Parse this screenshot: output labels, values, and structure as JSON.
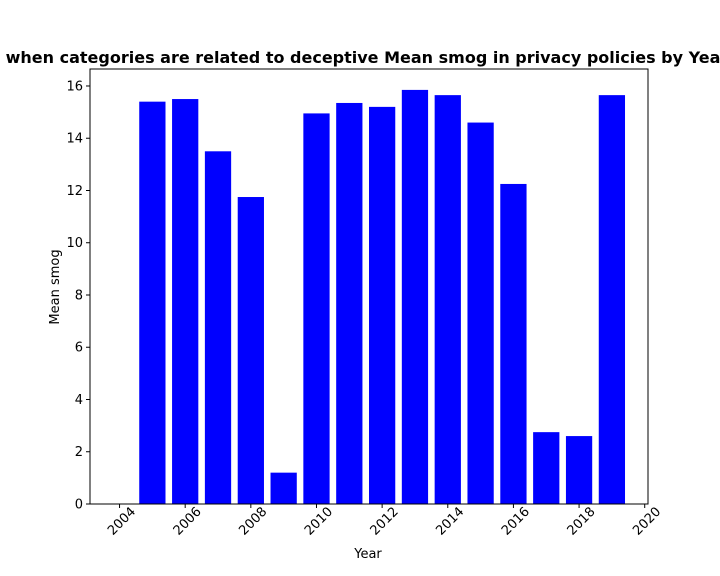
{
  "chart_data": {
    "type": "bar",
    "title": "when categories are related to deceptive Mean smog in privacy policies by Yea",
    "xlabel": "Year",
    "ylabel": "Mean smog",
    "x": [
      2005,
      2006,
      2007,
      2008,
      2009,
      2010,
      2011,
      2012,
      2013,
      2014,
      2015,
      2016,
      2017,
      2018,
      2019
    ],
    "values": [
      15.4,
      15.5,
      13.5,
      11.75,
      1.2,
      14.95,
      15.35,
      15.2,
      15.85,
      15.65,
      14.6,
      12.25,
      2.75,
      2.6,
      15.65
    ],
    "xlim": [
      2003.1,
      2020.1
    ],
    "ylim": [
      0,
      16.65
    ],
    "xticks": [
      "2004",
      "2006",
      "2008",
      "2010",
      "2012",
      "2014",
      "2016",
      "2018",
      "2020"
    ],
    "yticks": [
      "0",
      "2",
      "4",
      "6",
      "8",
      "10",
      "12",
      "14",
      "16"
    ],
    "bar_color": "#0000ff",
    "grid": false
  }
}
